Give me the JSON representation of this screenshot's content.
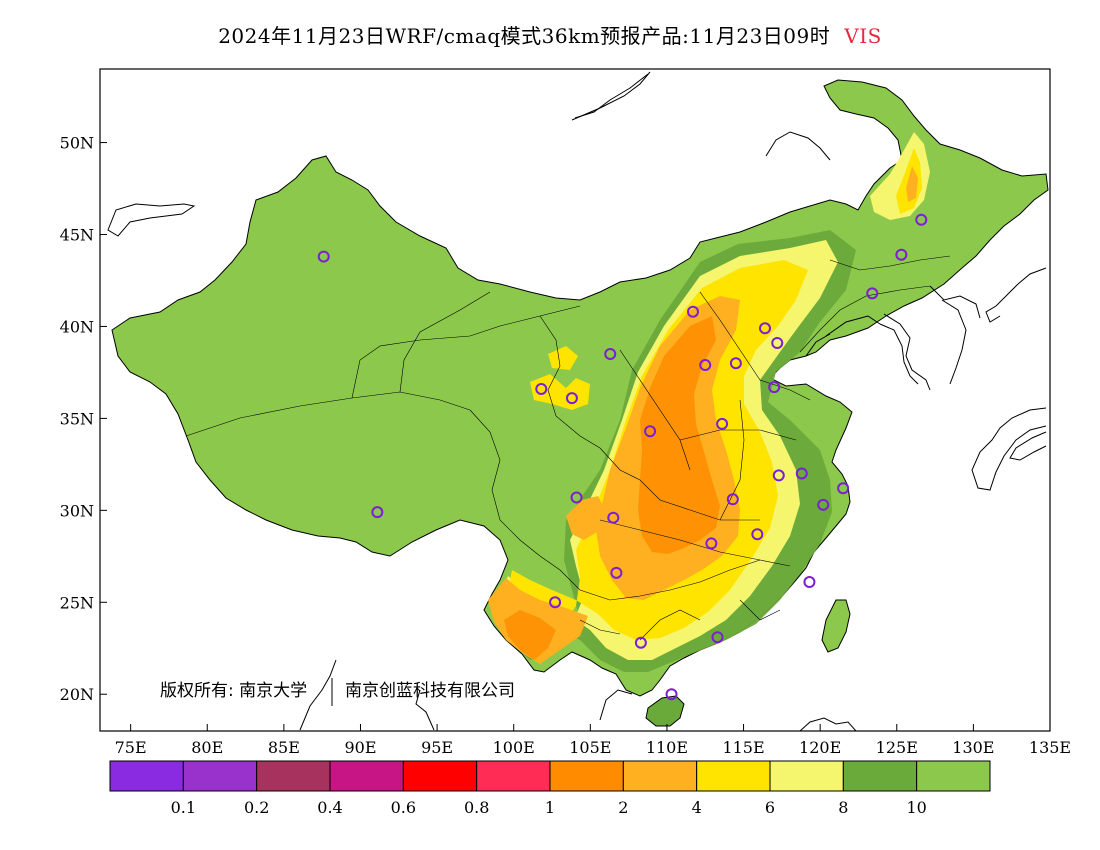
{
  "title": {
    "text": "2024年11月23日WRF/cmaq模式36km预报产品:11月23日09时",
    "variable": "VIS"
  },
  "copyright": {
    "owner": "版权所有: 南京大学",
    "partner": "南京创蓝科技有限公司"
  },
  "axes": {
    "lon_ticks": [
      "75E",
      "80E",
      "85E",
      "90E",
      "95E",
      "100E",
      "105E",
      "110E",
      "115E",
      "120E",
      "125E",
      "130E",
      "135E"
    ],
    "lat_ticks": [
      "50N",
      "45N",
      "40N",
      "35N",
      "30N",
      "25N",
      "20N"
    ],
    "lon_range": [
      73,
      135
    ],
    "lat_range": [
      18,
      54
    ]
  },
  "colorbar": {
    "colors": [
      "#8a2be2",
      "#9932cc",
      "#a8325e",
      "#c71585",
      "#ff0000",
      "#ff2d55",
      "#ff8c00",
      "#ffb020",
      "#ffe400",
      "#f5f56e",
      "#6aaa3a",
      "#8cc84b"
    ],
    "labels": [
      "0.1",
      "0.2",
      "0.4",
      "0.6",
      "0.8",
      "1",
      "2",
      "4",
      "6",
      "8",
      "10"
    ]
  },
  "stations": [
    {
      "lon": 87.6,
      "lat": 43.8
    },
    {
      "lon": 91.1,
      "lat": 29.9
    },
    {
      "lon": 101.8,
      "lat": 36.6
    },
    {
      "lon": 103.8,
      "lat": 36.1
    },
    {
      "lon": 106.3,
      "lat": 38.5
    },
    {
      "lon": 104.1,
      "lat": 30.7
    },
    {
      "lon": 106.5,
      "lat": 29.6
    },
    {
      "lon": 106.7,
      "lat": 26.6
    },
    {
      "lon": 102.7,
      "lat": 25.0
    },
    {
      "lon": 108.3,
      "lat": 22.8
    },
    {
      "lon": 110.3,
      "lat": 20.0
    },
    {
      "lon": 113.3,
      "lat": 23.1
    },
    {
      "lon": 112.9,
      "lat": 28.2
    },
    {
      "lon": 114.3,
      "lat": 30.6
    },
    {
      "lon": 115.9,
      "lat": 28.7
    },
    {
      "lon": 119.3,
      "lat": 26.1
    },
    {
      "lon": 117.3,
      "lat": 31.9
    },
    {
      "lon": 118.8,
      "lat": 32.0
    },
    {
      "lon": 120.2,
      "lat": 30.3
    },
    {
      "lon": 121.5,
      "lat": 31.2
    },
    {
      "lon": 113.6,
      "lat": 34.7
    },
    {
      "lon": 108.9,
      "lat": 34.3
    },
    {
      "lon": 112.5,
      "lat": 37.9
    },
    {
      "lon": 114.5,
      "lat": 38.0
    },
    {
      "lon": 117.0,
      "lat": 36.7
    },
    {
      "lon": 117.2,
      "lat": 39.1
    },
    {
      "lon": 116.4,
      "lat": 39.9
    },
    {
      "lon": 111.7,
      "lat": 40.8
    },
    {
      "lon": 123.4,
      "lat": 41.8
    },
    {
      "lon": 125.3,
      "lat": 43.9
    },
    {
      "lon": 126.6,
      "lat": 45.8
    }
  ],
  "colors": {
    "land_high_vis": "#8cc84b",
    "land_mid_high": "#6aaa3a",
    "band_8": "#f5f56e",
    "band_6": "#ffe400",
    "band_4": "#ffb020",
    "band_2": "#ff8c00",
    "station": "#7b1fd6",
    "title_variable": "#e8283c"
  }
}
